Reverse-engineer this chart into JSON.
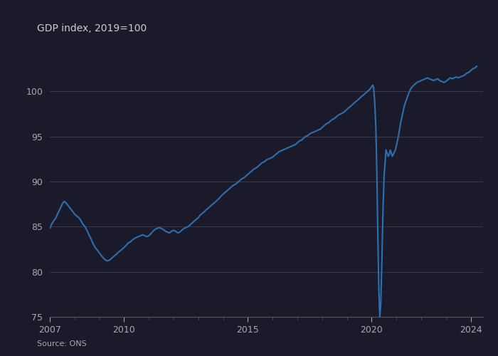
{
  "title": "GDP index, 2019=100",
  "source": "Source: ONS",
  "line_color": "#2e6fad",
  "background_color": "#1a1a2a",
  "axes_color": "#1a1a2a",
  "grid_color": "#3a3a4a",
  "text_color": "#aaaaaa",
  "title_color": "#cccccc",
  "spine_color": "#555555",
  "xlim": [
    2007,
    2024.5
  ],
  "ylim": [
    75,
    105
  ],
  "yticks": [
    75,
    80,
    85,
    90,
    95,
    100
  ],
  "xticks": [
    2007,
    2010,
    2015,
    2020,
    2024
  ],
  "series": [
    [
      2007.0,
      84.8
    ],
    [
      2007.08,
      85.3
    ],
    [
      2007.17,
      85.7
    ],
    [
      2007.25,
      86.0
    ],
    [
      2007.33,
      86.5
    ],
    [
      2007.42,
      87.0
    ],
    [
      2007.5,
      87.5
    ],
    [
      2007.58,
      87.8
    ],
    [
      2007.67,
      87.6
    ],
    [
      2007.75,
      87.3
    ],
    [
      2007.83,
      87.0
    ],
    [
      2007.92,
      86.7
    ],
    [
      2008.0,
      86.4
    ],
    [
      2008.08,
      86.2
    ],
    [
      2008.17,
      86.0
    ],
    [
      2008.25,
      85.7
    ],
    [
      2008.33,
      85.3
    ],
    [
      2008.42,
      85.0
    ],
    [
      2008.5,
      84.6
    ],
    [
      2008.58,
      84.1
    ],
    [
      2008.67,
      83.6
    ],
    [
      2008.75,
      83.1
    ],
    [
      2008.83,
      82.7
    ],
    [
      2008.92,
      82.4
    ],
    [
      2009.0,
      82.1
    ],
    [
      2009.08,
      81.8
    ],
    [
      2009.17,
      81.5
    ],
    [
      2009.25,
      81.3
    ],
    [
      2009.33,
      81.2
    ],
    [
      2009.42,
      81.3
    ],
    [
      2009.5,
      81.5
    ],
    [
      2009.58,
      81.7
    ],
    [
      2009.67,
      81.9
    ],
    [
      2009.75,
      82.1
    ],
    [
      2009.83,
      82.3
    ],
    [
      2009.92,
      82.5
    ],
    [
      2010.0,
      82.7
    ],
    [
      2010.08,
      82.9
    ],
    [
      2010.17,
      83.2
    ],
    [
      2010.25,
      83.3
    ],
    [
      2010.33,
      83.5
    ],
    [
      2010.42,
      83.7
    ],
    [
      2010.5,
      83.8
    ],
    [
      2010.58,
      83.9
    ],
    [
      2010.67,
      84.0
    ],
    [
      2010.75,
      84.1
    ],
    [
      2010.83,
      84.0
    ],
    [
      2010.92,
      83.9
    ],
    [
      2011.0,
      84.0
    ],
    [
      2011.08,
      84.2
    ],
    [
      2011.17,
      84.5
    ],
    [
      2011.25,
      84.7
    ],
    [
      2011.33,
      84.8
    ],
    [
      2011.42,
      84.9
    ],
    [
      2011.5,
      84.8
    ],
    [
      2011.58,
      84.7
    ],
    [
      2011.67,
      84.5
    ],
    [
      2011.75,
      84.4
    ],
    [
      2011.83,
      84.3
    ],
    [
      2011.92,
      84.5
    ],
    [
      2012.0,
      84.6
    ],
    [
      2012.08,
      84.5
    ],
    [
      2012.17,
      84.3
    ],
    [
      2012.25,
      84.4
    ],
    [
      2012.33,
      84.6
    ],
    [
      2012.42,
      84.8
    ],
    [
      2012.5,
      84.9
    ],
    [
      2012.58,
      85.0
    ],
    [
      2012.67,
      85.2
    ],
    [
      2012.75,
      85.4
    ],
    [
      2012.83,
      85.6
    ],
    [
      2012.92,
      85.8
    ],
    [
      2013.0,
      86.0
    ],
    [
      2013.08,
      86.3
    ],
    [
      2013.17,
      86.5
    ],
    [
      2013.25,
      86.7
    ],
    [
      2013.33,
      86.9
    ],
    [
      2013.42,
      87.1
    ],
    [
      2013.5,
      87.3
    ],
    [
      2013.58,
      87.5
    ],
    [
      2013.67,
      87.7
    ],
    [
      2013.75,
      87.9
    ],
    [
      2013.83,
      88.1
    ],
    [
      2013.92,
      88.4
    ],
    [
      2014.0,
      88.6
    ],
    [
      2014.08,
      88.8
    ],
    [
      2014.17,
      89.0
    ],
    [
      2014.25,
      89.2
    ],
    [
      2014.33,
      89.4
    ],
    [
      2014.42,
      89.6
    ],
    [
      2014.5,
      89.7
    ],
    [
      2014.58,
      89.9
    ],
    [
      2014.67,
      90.1
    ],
    [
      2014.75,
      90.3
    ],
    [
      2014.83,
      90.4
    ],
    [
      2014.92,
      90.6
    ],
    [
      2015.0,
      90.8
    ],
    [
      2015.08,
      91.0
    ],
    [
      2015.17,
      91.2
    ],
    [
      2015.25,
      91.4
    ],
    [
      2015.33,
      91.5
    ],
    [
      2015.42,
      91.7
    ],
    [
      2015.5,
      91.9
    ],
    [
      2015.58,
      92.1
    ],
    [
      2015.67,
      92.2
    ],
    [
      2015.75,
      92.4
    ],
    [
      2015.83,
      92.5
    ],
    [
      2015.92,
      92.6
    ],
    [
      2016.0,
      92.7
    ],
    [
      2016.08,
      92.9
    ],
    [
      2016.17,
      93.1
    ],
    [
      2016.25,
      93.3
    ],
    [
      2016.33,
      93.4
    ],
    [
      2016.42,
      93.5
    ],
    [
      2016.5,
      93.6
    ],
    [
      2016.58,
      93.7
    ],
    [
      2016.67,
      93.8
    ],
    [
      2016.75,
      93.9
    ],
    [
      2016.83,
      94.0
    ],
    [
      2016.92,
      94.1
    ],
    [
      2017.0,
      94.3
    ],
    [
      2017.08,
      94.5
    ],
    [
      2017.17,
      94.6
    ],
    [
      2017.25,
      94.8
    ],
    [
      2017.33,
      95.0
    ],
    [
      2017.42,
      95.1
    ],
    [
      2017.5,
      95.3
    ],
    [
      2017.58,
      95.4
    ],
    [
      2017.67,
      95.5
    ],
    [
      2017.75,
      95.6
    ],
    [
      2017.83,
      95.7
    ],
    [
      2017.92,
      95.8
    ],
    [
      2018.0,
      96.0
    ],
    [
      2018.08,
      96.2
    ],
    [
      2018.17,
      96.4
    ],
    [
      2018.25,
      96.5
    ],
    [
      2018.33,
      96.7
    ],
    [
      2018.42,
      96.9
    ],
    [
      2018.5,
      97.0
    ],
    [
      2018.58,
      97.2
    ],
    [
      2018.67,
      97.4
    ],
    [
      2018.75,
      97.5
    ],
    [
      2018.83,
      97.6
    ],
    [
      2018.92,
      97.8
    ],
    [
      2019.0,
      98.0
    ],
    [
      2019.08,
      98.2
    ],
    [
      2019.17,
      98.4
    ],
    [
      2019.25,
      98.6
    ],
    [
      2019.33,
      98.8
    ],
    [
      2019.42,
      99.0
    ],
    [
      2019.5,
      99.2
    ],
    [
      2019.58,
      99.4
    ],
    [
      2019.67,
      99.6
    ],
    [
      2019.75,
      99.8
    ],
    [
      2019.83,
      100.0
    ],
    [
      2019.92,
      100.2
    ],
    [
      2020.0,
      100.5
    ],
    [
      2020.04,
      100.7
    ],
    [
      2020.08,
      100.4
    ],
    [
      2020.12,
      99.0
    ],
    [
      2020.17,
      96.0
    ],
    [
      2020.21,
      91.0
    ],
    [
      2020.25,
      84.0
    ],
    [
      2020.29,
      78.0
    ],
    [
      2020.33,
      74.9
    ],
    [
      2020.37,
      76.5
    ],
    [
      2020.42,
      82.0
    ],
    [
      2020.46,
      87.0
    ],
    [
      2020.5,
      90.5
    ],
    [
      2020.54,
      92.0
    ],
    [
      2020.58,
      93.5
    ],
    [
      2020.62,
      93.2
    ],
    [
      2020.67,
      92.8
    ],
    [
      2020.71,
      93.0
    ],
    [
      2020.75,
      93.5
    ],
    [
      2020.79,
      93.2
    ],
    [
      2020.83,
      92.8
    ],
    [
      2020.87,
      93.0
    ],
    [
      2020.92,
      93.3
    ],
    [
      2020.96,
      93.5
    ],
    [
      2021.0,
      94.0
    ],
    [
      2021.08,
      95.0
    ],
    [
      2021.17,
      96.5
    ],
    [
      2021.25,
      97.5
    ],
    [
      2021.33,
      98.5
    ],
    [
      2021.42,
      99.2
    ],
    [
      2021.5,
      99.8
    ],
    [
      2021.58,
      100.3
    ],
    [
      2021.67,
      100.6
    ],
    [
      2021.75,
      100.8
    ],
    [
      2021.83,
      101.0
    ],
    [
      2021.92,
      101.1
    ],
    [
      2022.0,
      101.2
    ],
    [
      2022.08,
      101.3
    ],
    [
      2022.17,
      101.4
    ],
    [
      2022.25,
      101.5
    ],
    [
      2022.33,
      101.4
    ],
    [
      2022.42,
      101.3
    ],
    [
      2022.5,
      101.2
    ],
    [
      2022.58,
      101.3
    ],
    [
      2022.67,
      101.4
    ],
    [
      2022.75,
      101.2
    ],
    [
      2022.83,
      101.1
    ],
    [
      2022.92,
      101.0
    ],
    [
      2023.0,
      101.1
    ],
    [
      2023.08,
      101.3
    ],
    [
      2023.17,
      101.5
    ],
    [
      2023.25,
      101.4
    ],
    [
      2023.33,
      101.5
    ],
    [
      2023.42,
      101.6
    ],
    [
      2023.5,
      101.5
    ],
    [
      2023.58,
      101.6
    ],
    [
      2023.67,
      101.7
    ],
    [
      2023.75,
      101.8
    ],
    [
      2023.83,
      102.0
    ],
    [
      2023.92,
      102.1
    ],
    [
      2024.0,
      102.3
    ],
    [
      2024.08,
      102.5
    ],
    [
      2024.17,
      102.6
    ],
    [
      2024.25,
      102.8
    ]
  ]
}
